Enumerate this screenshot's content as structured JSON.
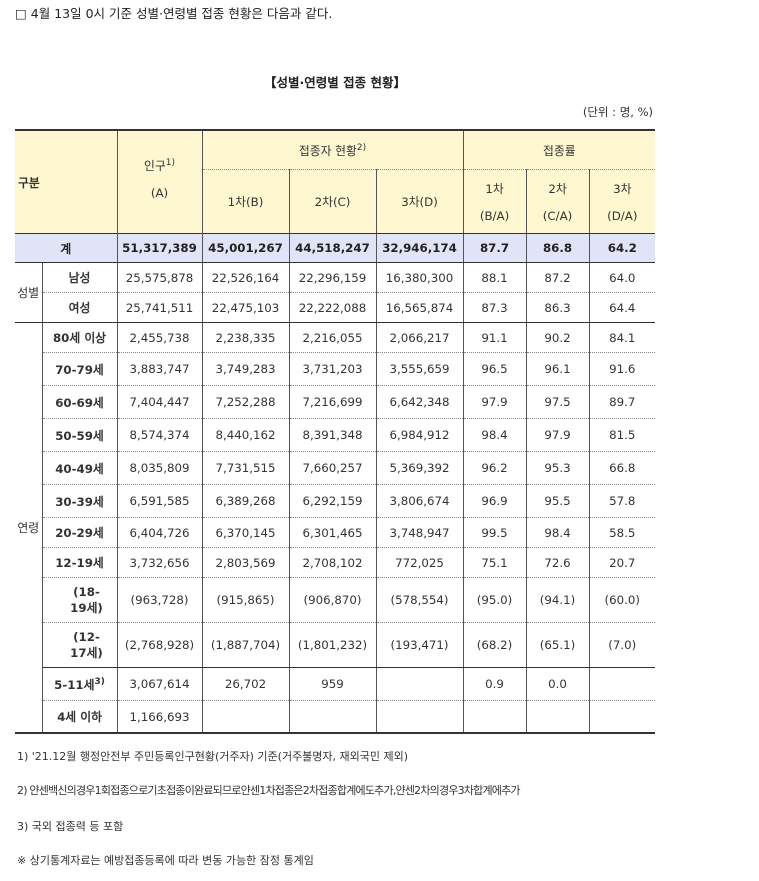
{
  "intro": "□ 4월 13일 0시 기준 성별·연령별 접종 현황은 다음과 같다.",
  "title": "【성별·연령별 접종 현황】",
  "unit": "(단위 : 명, %)",
  "headers": {
    "category": "구분",
    "population": "인구",
    "population_sup": "1)",
    "population_code": "(A)",
    "vaccinated": "접종자 현황",
    "vaccinated_sup": "2)",
    "rate": "접종률",
    "dose1": "1차(B)",
    "dose2": "2차(C)",
    "dose3": "3차(D)",
    "rate1": "1차",
    "rate1_code": "(B/A)",
    "rate2": "2차",
    "rate2_code": "(C/A)",
    "rate3": "3차",
    "rate3_code": "(D/A)"
  },
  "groups": {
    "sex": "성별",
    "age": "연령"
  },
  "total": {
    "label": "계",
    "pop": "51,317,389",
    "d1": "45,001,267",
    "d2": "44,518,247",
    "d3": "32,946,174",
    "r1": "87.7",
    "r2": "86.8",
    "r3": "64.2"
  },
  "sex_rows": [
    {
      "label": "남성",
      "pop": "25,575,878",
      "d1": "22,526,164",
      "d2": "22,296,159",
      "d3": "16,380,300",
      "r1": "88.1",
      "r2": "87.2",
      "r3": "64.0"
    },
    {
      "label": "여성",
      "pop": "25,741,511",
      "d1": "22,475,103",
      "d2": "22,222,088",
      "d3": "16,565,874",
      "r1": "87.3",
      "r2": "86.3",
      "r3": "64.4"
    }
  ],
  "age_rows": [
    {
      "label": "80세 이상",
      "pop": "2,455,738",
      "d1": "2,238,335",
      "d2": "2,216,055",
      "d3": "2,066,217",
      "r1": "91.1",
      "r2": "90.2",
      "r3": "84.1"
    },
    {
      "label": "70-79세",
      "pop": "3,883,747",
      "d1": "3,749,283",
      "d2": "3,731,203",
      "d3": "3,555,659",
      "r1": "96.5",
      "r2": "96.1",
      "r3": "91.6"
    },
    {
      "label": "60-69세",
      "pop": "7,404,447",
      "d1": "7,252,288",
      "d2": "7,216,699",
      "d3": "6,642,348",
      "r1": "97.9",
      "r2": "97.5",
      "r3": "89.7"
    },
    {
      "label": "50-59세",
      "pop": "8,574,374",
      "d1": "8,440,162",
      "d2": "8,391,348",
      "d3": "6,984,912",
      "r1": "98.4",
      "r2": "97.9",
      "r3": "81.5"
    },
    {
      "label": "40-49세",
      "pop": "8,035,809",
      "d1": "7,731,515",
      "d2": "7,660,257",
      "d3": "5,369,392",
      "r1": "96.2",
      "r2": "95.3",
      "r3": "66.8"
    },
    {
      "label": "30-39세",
      "pop": "6,591,585",
      "d1": "6,389,268",
      "d2": "6,292,159",
      "d3": "3,806,674",
      "r1": "96.9",
      "r2": "95.5",
      "r3": "57.8"
    },
    {
      "label": "20-29세",
      "pop": "6,404,726",
      "d1": "6,370,145",
      "d2": "6,301,465",
      "d3": "3,748,947",
      "r1": "99.5",
      "r2": "98.4",
      "r3": "58.5"
    },
    {
      "label": "12-19세",
      "pop": "3,732,656",
      "d1": "2,803,569",
      "d2": "2,708,102",
      "d3": "772,025",
      "r1": "75.1",
      "r2": "72.6",
      "r3": "20.7"
    }
  ],
  "sub_rows": [
    {
      "label_a": "(18-",
      "label_b": "19세)",
      "pop": "(963,728)",
      "d1": "(915,865)",
      "d2": "(906,870)",
      "d3": "(578,554)",
      "r1": "(95.0)",
      "r2": "(94.1)",
      "r3": "(60.0)"
    },
    {
      "label_a": "(12-",
      "label_b": "17세)",
      "pop": "(2,768,928)",
      "d1": "(1,887,704)",
      "d2": "(1,801,232)",
      "d3": "(193,471)",
      "r1": "(68.2)",
      "r2": "(65.1)",
      "r3": "(7.0)"
    }
  ],
  "child_rows": [
    {
      "label": "5-11세",
      "sup": "3)",
      "pop": "3,067,614",
      "d1": "26,702",
      "d2": "959",
      "d3": "",
      "r1": "0.9",
      "r2": "0.0",
      "r3": ""
    },
    {
      "label": "4세 이하",
      "sup": "",
      "pop": "1,166,693",
      "d1": "",
      "d2": "",
      "d3": "",
      "r1": "",
      "r2": "",
      "r3": ""
    }
  ],
  "notes": [
    "1) '21.12월 행정안전부 주민등록인구현황(거주자) 기준(거주불명자, 재외국민 제외)",
    "2) 얀센백신의경우1회접종으로기초접종이완료되므로얀센1차접종은2차접종합계에도추가,얀센2차의경우3차합계에추가",
    "3) 국외 접종력 등 포함",
    "※ 상기통계자료는 예방접종등록에 따라 변동 가능한 잠정 통계임"
  ]
}
